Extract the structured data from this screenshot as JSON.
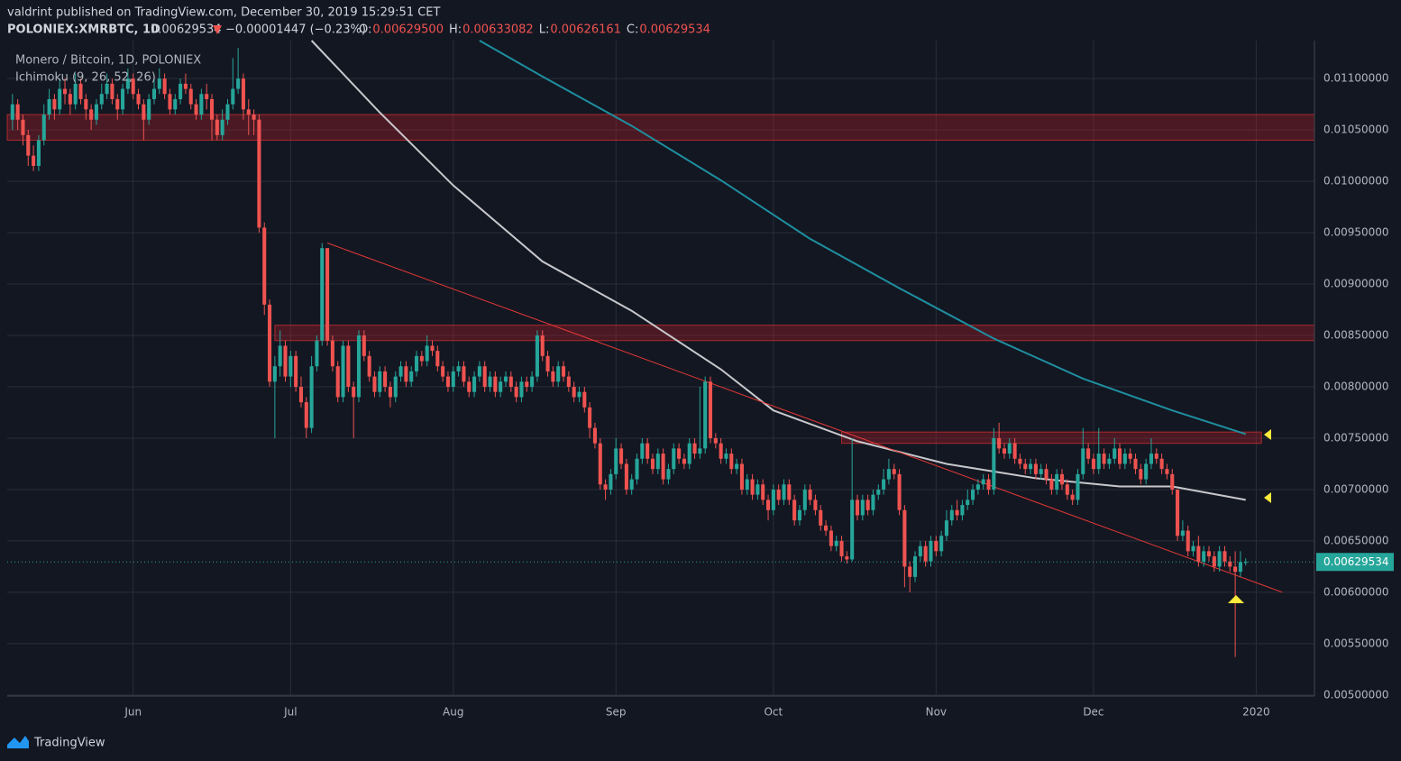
{
  "header": {
    "published": "valdrint published on TradingView.com, December 30, 2019 15:29:51 CET",
    "symbol": "POLONIEX:XMRBTC, 1D",
    "price": "0.00629534",
    "change_arrow": "▼",
    "change": "−0.00001447 (−0.23%)",
    "ohlc": [
      {
        "label": "O:",
        "value": "0.00629500"
      },
      {
        "label": "H:",
        "value": "0.00633082"
      },
      {
        "label": "L:",
        "value": "0.00626161"
      },
      {
        "label": "C:",
        "value": "0.00629534"
      }
    ]
  },
  "legend": [
    "Monero / Bitcoin, 1D, POLONIEX",
    "Ichimoku (9, 26, 52, 26)"
  ],
  "footer": "TradingView",
  "chart_data": {
    "type": "candlestick",
    "up_color": "#26a69a",
    "down_color": "#ef5350",
    "grid": true,
    "xlim": [
      -1,
      248.1
    ],
    "ylim": [
      0.00499,
      0.01137
    ],
    "xticks": [
      {
        "value": 23,
        "label": "Jun"
      },
      {
        "value": 53,
        "label": "Jul"
      },
      {
        "value": 84,
        "label": "Aug"
      },
      {
        "value": 115,
        "label": "Sep"
      },
      {
        "value": 145,
        "label": "Oct"
      },
      {
        "value": 176,
        "label": "Nov"
      },
      {
        "value": 206,
        "label": "Dec"
      },
      {
        "value": 237,
        "label": "2020"
      }
    ],
    "yticks": [
      {
        "value": 0.005,
        "label": "0.00500000"
      },
      {
        "value": 0.0055,
        "label": "0.00550000"
      },
      {
        "value": 0.006,
        "label": "0.00600000"
      },
      {
        "value": 0.0065,
        "label": "0.00650000"
      },
      {
        "value": 0.007,
        "label": "0.00700000"
      },
      {
        "value": 0.0075,
        "label": "0.00750000"
      },
      {
        "value": 0.008,
        "label": "0.00800000"
      },
      {
        "value": 0.0085,
        "label": "0.00850000"
      },
      {
        "value": 0.009,
        "label": "0.00900000"
      },
      {
        "value": 0.0095,
        "label": "0.00950000"
      },
      {
        "value": 0.01,
        "label": "0.01000000"
      },
      {
        "value": 0.0105,
        "label": "0.01050000"
      },
      {
        "value": 0.011,
        "label": "0.01100000"
      }
    ],
    "last_price": 0.00629534,
    "open": [
      0.0106,
      0.01075,
      0.0106,
      0.01045,
      0.01025,
      0.01015,
      0.0104,
      0.01065,
      0.0108,
      0.0107,
      0.0109,
      0.01085,
      0.01075,
      0.01095,
      0.0108,
      0.0107,
      0.0106,
      0.01075,
      0.01085,
      0.01095,
      0.0108,
      0.0107,
      0.0109,
      0.011,
      0.01085,
      0.01075,
      0.0106,
      0.0108,
      0.0109,
      0.011,
      0.01085,
      0.0107,
      0.0108,
      0.01095,
      0.0109,
      0.01075,
      0.01065,
      0.01085,
      0.0108,
      0.0106,
      0.01045,
      0.0106,
      0.01075,
      0.0109,
      0.011,
      0.0107,
      0.01065,
      0.0106,
      0.00955,
      0.0088,
      0.00805,
      0.0082,
      0.0084,
      0.0081,
      0.0083,
      0.008,
      0.00785,
      0.0076,
      0.0082,
      0.00845,
      0.00935,
      0.00845,
      0.0082,
      0.0079,
      0.0084,
      0.008,
      0.0079,
      0.0085,
      0.0083,
      0.0081,
      0.00795,
      0.00815,
      0.008,
      0.0079,
      0.0081,
      0.0082,
      0.00805,
      0.00815,
      0.0083,
      0.00825,
      0.0084,
      0.00835,
      0.0082,
      0.0081,
      0.008,
      0.00815,
      0.0082,
      0.00805,
      0.00795,
      0.0081,
      0.0082,
      0.008,
      0.0081,
      0.00795,
      0.00805,
      0.0081,
      0.008,
      0.0079,
      0.00805,
      0.008,
      0.0081,
      0.0085,
      0.0083,
      0.00815,
      0.00805,
      0.0082,
      0.0081,
      0.008,
      0.0079,
      0.00795,
      0.0078,
      0.0076,
      0.00745,
      0.00705,
      0.007,
      0.00715,
      0.0074,
      0.00725,
      0.007,
      0.0071,
      0.0073,
      0.00745,
      0.0073,
      0.0072,
      0.00735,
      0.0071,
      0.0072,
      0.0074,
      0.0073,
      0.00725,
      0.00745,
      0.00735,
      0.0074,
      0.00805,
      0.0075,
      0.00745,
      0.0073,
      0.00735,
      0.0072,
      0.00725,
      0.007,
      0.0071,
      0.00695,
      0.00705,
      0.0069,
      0.0068,
      0.007,
      0.0069,
      0.00705,
      0.0069,
      0.0067,
      0.0068,
      0.007,
      0.0069,
      0.0068,
      0.00665,
      0.0066,
      0.00645,
      0.0065,
      0.00635,
      0.00632,
      0.0069,
      0.00675,
      0.0069,
      0.0068,
      0.00695,
      0.007,
      0.0071,
      0.0072,
      0.00715,
      0.0068,
      0.00625,
      0.00615,
      0.00635,
      0.00645,
      0.0063,
      0.0065,
      0.0064,
      0.00655,
      0.0067,
      0.0068,
      0.00675,
      0.00685,
      0.0069,
      0.007,
      0.00705,
      0.0071,
      0.007,
      0.0075,
      0.0074,
      0.00735,
      0.00745,
      0.0073,
      0.00725,
      0.0072,
      0.00725,
      0.00715,
      0.0072,
      0.0071,
      0.007,
      0.00715,
      0.00705,
      0.00695,
      0.0069,
      0.00715,
      0.0074,
      0.0073,
      0.0072,
      0.00735,
      0.00725,
      0.0073,
      0.0074,
      0.00725,
      0.00735,
      0.0073,
      0.0072,
      0.0071,
      0.00725,
      0.00735,
      0.0073,
      0.0072,
      0.00715,
      0.007,
      0.00655,
      0.0066,
      0.0064,
      0.00645,
      0.0063,
      0.0064,
      0.00635,
      0.00625,
      0.0064,
      0.0063,
      0.00625,
      0.0062,
      0.006295
    ],
    "high": [
      0.01085,
      0.0108,
      0.01065,
      0.0105,
      0.01035,
      0.01045,
      0.01075,
      0.0109,
      0.01085,
      0.011,
      0.011,
      0.0109,
      0.01105,
      0.011,
      0.01085,
      0.01075,
      0.0108,
      0.01095,
      0.01105,
      0.011,
      0.01085,
      0.01095,
      0.0111,
      0.01105,
      0.0109,
      0.0108,
      0.01085,
      0.011,
      0.0111,
      0.01105,
      0.0109,
      0.01085,
      0.011,
      0.01105,
      0.01095,
      0.0108,
      0.0109,
      0.01095,
      0.01085,
      0.01065,
      0.0107,
      0.0108,
      0.0112,
      0.0113,
      0.01105,
      0.0108,
      0.0107,
      0.01065,
      0.0096,
      0.00885,
      0.0083,
      0.00855,
      0.00845,
      0.00835,
      0.00835,
      0.0081,
      0.0079,
      0.0083,
      0.0085,
      0.0094,
      0.00935,
      0.0085,
      0.00825,
      0.00845,
      0.00845,
      0.00805,
      0.00855,
      0.00855,
      0.00835,
      0.00815,
      0.0082,
      0.0082,
      0.00805,
      0.00815,
      0.00825,
      0.00825,
      0.0082,
      0.00835,
      0.00835,
      0.0085,
      0.00845,
      0.0084,
      0.00825,
      0.00815,
      0.0082,
      0.00825,
      0.00825,
      0.0081,
      0.00815,
      0.00825,
      0.00825,
      0.00815,
      0.00815,
      0.0081,
      0.00815,
      0.00815,
      0.00805,
      0.0081,
      0.0081,
      0.00815,
      0.00855,
      0.00855,
      0.00835,
      0.0082,
      0.00825,
      0.00825,
      0.00815,
      0.00805,
      0.008,
      0.008,
      0.00785,
      0.00765,
      0.0075,
      0.0071,
      0.0072,
      0.0075,
      0.00745,
      0.0073,
      0.00715,
      0.00735,
      0.0075,
      0.0075,
      0.00735,
      0.0074,
      0.0074,
      0.00725,
      0.00745,
      0.00745,
      0.00735,
      0.0075,
      0.0075,
      0.008,
      0.0081,
      0.0081,
      0.00755,
      0.0075,
      0.0074,
      0.0074,
      0.0073,
      0.0073,
      0.00715,
      0.00715,
      0.0071,
      0.0071,
      0.00695,
      0.00705,
      0.00705,
      0.0071,
      0.0071,
      0.00695,
      0.00685,
      0.00705,
      0.00705,
      0.00695,
      0.00685,
      0.0067,
      0.00665,
      0.00655,
      0.00655,
      0.0064,
      0.0075,
      0.00695,
      0.00695,
      0.00695,
      0.007,
      0.00705,
      0.0072,
      0.0073,
      0.00725,
      0.0072,
      0.00685,
      0.0063,
      0.0064,
      0.0065,
      0.0065,
      0.00655,
      0.00655,
      0.0066,
      0.0068,
      0.00685,
      0.0069,
      0.0069,
      0.007,
      0.00705,
      0.0071,
      0.00715,
      0.00715,
      0.0076,
      0.00765,
      0.00745,
      0.0075,
      0.0075,
      0.00735,
      0.0073,
      0.0073,
      0.0073,
      0.00725,
      0.00725,
      0.00715,
      0.0072,
      0.0072,
      0.0071,
      0.007,
      0.0072,
      0.0076,
      0.00745,
      0.00735,
      0.0076,
      0.0074,
      0.00735,
      0.0075,
      0.00745,
      0.0074,
      0.0074,
      0.00735,
      0.00725,
      0.0073,
      0.0075,
      0.0074,
      0.00735,
      0.00725,
      0.0072,
      0.007,
      0.0067,
      0.00665,
      0.0065,
      0.00655,
      0.00645,
      0.00645,
      0.0064,
      0.00645,
      0.00645,
      0.00635,
      0.0064,
      0.0064,
      0.00633082
    ],
    "low": [
      0.0105,
      0.0105,
      0.01035,
      0.01015,
      0.0101,
      0.0101,
      0.01035,
      0.0106,
      0.0106,
      0.01065,
      0.01075,
      0.01065,
      0.0107,
      0.01075,
      0.0106,
      0.0105,
      0.01055,
      0.0107,
      0.0108,
      0.01075,
      0.0106,
      0.01065,
      0.01085,
      0.0108,
      0.0107,
      0.0104,
      0.01055,
      0.01075,
      0.01085,
      0.0108,
      0.01065,
      0.01065,
      0.01075,
      0.01085,
      0.0107,
      0.0106,
      0.0106,
      0.0107,
      0.0104,
      0.0104,
      0.0104,
      0.01055,
      0.0107,
      0.01085,
      0.0106,
      0.01045,
      0.01045,
      0.0095,
      0.0087,
      0.008,
      0.0075,
      0.0081,
      0.00805,
      0.008,
      0.00795,
      0.0078,
      0.0075,
      0.00755,
      0.00815,
      0.0084,
      0.0084,
      0.00815,
      0.00785,
      0.00785,
      0.00795,
      0.0075,
      0.00785,
      0.00825,
      0.00805,
      0.0079,
      0.0079,
      0.00795,
      0.0078,
      0.00785,
      0.00805,
      0.008,
      0.008,
      0.0081,
      0.0082,
      0.0082,
      0.0083,
      0.00815,
      0.00805,
      0.00795,
      0.00795,
      0.0081,
      0.008,
      0.0079,
      0.0079,
      0.00805,
      0.00795,
      0.00795,
      0.0079,
      0.0079,
      0.008,
      0.00795,
      0.00785,
      0.00785,
      0.00795,
      0.00795,
      0.00805,
      0.00825,
      0.0081,
      0.008,
      0.008,
      0.00805,
      0.00795,
      0.00785,
      0.00785,
      0.00775,
      0.0075,
      0.0074,
      0.007,
      0.0069,
      0.00695,
      0.0071,
      0.0072,
      0.00695,
      0.00695,
      0.00705,
      0.00725,
      0.00725,
      0.00715,
      0.00715,
      0.00705,
      0.00705,
      0.00715,
      0.00725,
      0.0072,
      0.0072,
      0.0073,
      0.0073,
      0.00735,
      0.00745,
      0.0074,
      0.00725,
      0.00725,
      0.00715,
      0.00715,
      0.00695,
      0.00695,
      0.0069,
      0.0069,
      0.00685,
      0.0067,
      0.00675,
      0.00685,
      0.00685,
      0.00685,
      0.00665,
      0.00665,
      0.00675,
      0.00685,
      0.00675,
      0.0066,
      0.00655,
      0.0064,
      0.0064,
      0.0063,
      0.00628,
      0.0063,
      0.0067,
      0.0067,
      0.00675,
      0.00675,
      0.0069,
      0.00695,
      0.00705,
      0.0071,
      0.00675,
      0.00605,
      0.006,
      0.0061,
      0.0063,
      0.00625,
      0.00625,
      0.00635,
      0.00635,
      0.0065,
      0.00665,
      0.0067,
      0.0067,
      0.0068,
      0.00685,
      0.00695,
      0.007,
      0.00695,
      0.00695,
      0.00735,
      0.0073,
      0.0073,
      0.00725,
      0.0072,
      0.00715,
      0.00715,
      0.0071,
      0.0071,
      0.00705,
      0.00695,
      0.00695,
      0.007,
      0.0069,
      0.00685,
      0.00685,
      0.0071,
      0.00725,
      0.00715,
      0.00715,
      0.0072,
      0.0072,
      0.00725,
      0.0072,
      0.0072,
      0.00725,
      0.00715,
      0.00705,
      0.00705,
      0.0072,
      0.00725,
      0.00715,
      0.0071,
      0.00695,
      0.0065,
      0.0065,
      0.00635,
      0.00635,
      0.00625,
      0.00625,
      0.0063,
      0.0062,
      0.0062,
      0.00625,
      0.0062,
      0.00537,
      0.00615,
      0.00626161
    ],
    "close": [
      0.01075,
      0.0106,
      0.01045,
      0.01025,
      0.01015,
      0.0104,
      0.01065,
      0.0108,
      0.0107,
      0.0109,
      0.01085,
      0.01075,
      0.01095,
      0.0108,
      0.0107,
      0.0106,
      0.01075,
      0.01085,
      0.01095,
      0.0108,
      0.0107,
      0.0109,
      0.011,
      0.01085,
      0.01075,
      0.0106,
      0.0108,
      0.0109,
      0.011,
      0.01085,
      0.0107,
      0.0108,
      0.01095,
      0.0109,
      0.01075,
      0.01065,
      0.01085,
      0.0108,
      0.0106,
      0.01045,
      0.0106,
      0.01075,
      0.0109,
      0.011,
      0.0107,
      0.01065,
      0.0106,
      0.00955,
      0.0088,
      0.00805,
      0.0082,
      0.0084,
      0.0081,
      0.0083,
      0.008,
      0.00785,
      0.0076,
      0.0082,
      0.00845,
      0.00935,
      0.00845,
      0.0082,
      0.0079,
      0.0084,
      0.008,
      0.0079,
      0.0085,
      0.0083,
      0.0081,
      0.00795,
      0.00815,
      0.008,
      0.0079,
      0.0081,
      0.0082,
      0.00805,
      0.00815,
      0.0083,
      0.00825,
      0.0084,
      0.00835,
      0.0082,
      0.0081,
      0.008,
      0.00815,
      0.0082,
      0.00805,
      0.00795,
      0.0081,
      0.0082,
      0.008,
      0.0081,
      0.00795,
      0.00805,
      0.0081,
      0.008,
      0.0079,
      0.00805,
      0.008,
      0.0081,
      0.0085,
      0.0083,
      0.00815,
      0.00805,
      0.0082,
      0.0081,
      0.008,
      0.0079,
      0.00795,
      0.0078,
      0.0076,
      0.00745,
      0.00705,
      0.007,
      0.00715,
      0.0074,
      0.00725,
      0.007,
      0.0071,
      0.0073,
      0.00745,
      0.0073,
      0.0072,
      0.00735,
      0.0071,
      0.0072,
      0.0074,
      0.0073,
      0.00725,
      0.00745,
      0.00735,
      0.0074,
      0.00805,
      0.0075,
      0.00745,
      0.0073,
      0.00735,
      0.0072,
      0.00725,
      0.007,
      0.0071,
      0.00695,
      0.00705,
      0.0069,
      0.0068,
      0.007,
      0.0069,
      0.00705,
      0.0069,
      0.0067,
      0.0068,
      0.007,
      0.0069,
      0.0068,
      0.00665,
      0.0066,
      0.00645,
      0.0065,
      0.00635,
      0.00632,
      0.0069,
      0.00675,
      0.0069,
      0.0068,
      0.00695,
      0.007,
      0.0071,
      0.0072,
      0.00715,
      0.0068,
      0.00625,
      0.00615,
      0.00635,
      0.00645,
      0.0063,
      0.0065,
      0.0064,
      0.00655,
      0.0067,
      0.0068,
      0.00675,
      0.00685,
      0.0069,
      0.007,
      0.00705,
      0.0071,
      0.007,
      0.0075,
      0.0074,
      0.00735,
      0.00745,
      0.0073,
      0.00725,
      0.0072,
      0.00725,
      0.00715,
      0.0072,
      0.0071,
      0.007,
      0.00715,
      0.00705,
      0.00695,
      0.0069,
      0.00715,
      0.0074,
      0.0073,
      0.0072,
      0.00735,
      0.00725,
      0.0073,
      0.0074,
      0.00725,
      0.00735,
      0.0073,
      0.0072,
      0.0071,
      0.00725,
      0.00735,
      0.0073,
      0.0072,
      0.00715,
      0.007,
      0.00655,
      0.0066,
      0.0064,
      0.00645,
      0.0063,
      0.0064,
      0.00635,
      0.00625,
      0.0064,
      0.0063,
      0.00625,
      0.0062,
      0.006295,
      0.00629534
    ],
    "lines": [
      {
        "color": "#c8c8cc",
        "x": [
          57,
          70,
          84,
          101,
          118,
          135,
          145,
          161,
          178,
          195,
          211,
          221,
          235
        ],
        "values": [
          0.01137,
          0.01067,
          0.00996,
          0.00922,
          0.00874,
          0.00817,
          0.00777,
          0.00747,
          0.00725,
          0.00711,
          0.00703,
          0.00703,
          0.0069
        ]
      },
      {
        "color": "#1e8fa0",
        "x": [
          89,
          101,
          118,
          135,
          152,
          169,
          187,
          204,
          221,
          235
        ],
        "values": [
          0.01137,
          0.01102,
          0.01054,
          0.01001,
          0.00944,
          0.00896,
          0.00847,
          0.00808,
          0.00777,
          0.00754
        ]
      }
    ],
    "zones": [
      {
        "from": -1,
        "to": 248.1,
        "low": 0.0104,
        "high": 0.01065
      },
      {
        "from": 50,
        "to": 248.1,
        "low": 0.00845,
        "high": 0.0086
      },
      {
        "from": 158,
        "to": 238,
        "low": 0.00745,
        "high": 0.00756
      }
    ],
    "trendline": {
      "x": [
        60,
        242
      ],
      "values": [
        0.0094,
        0.006
      ]
    }
  }
}
